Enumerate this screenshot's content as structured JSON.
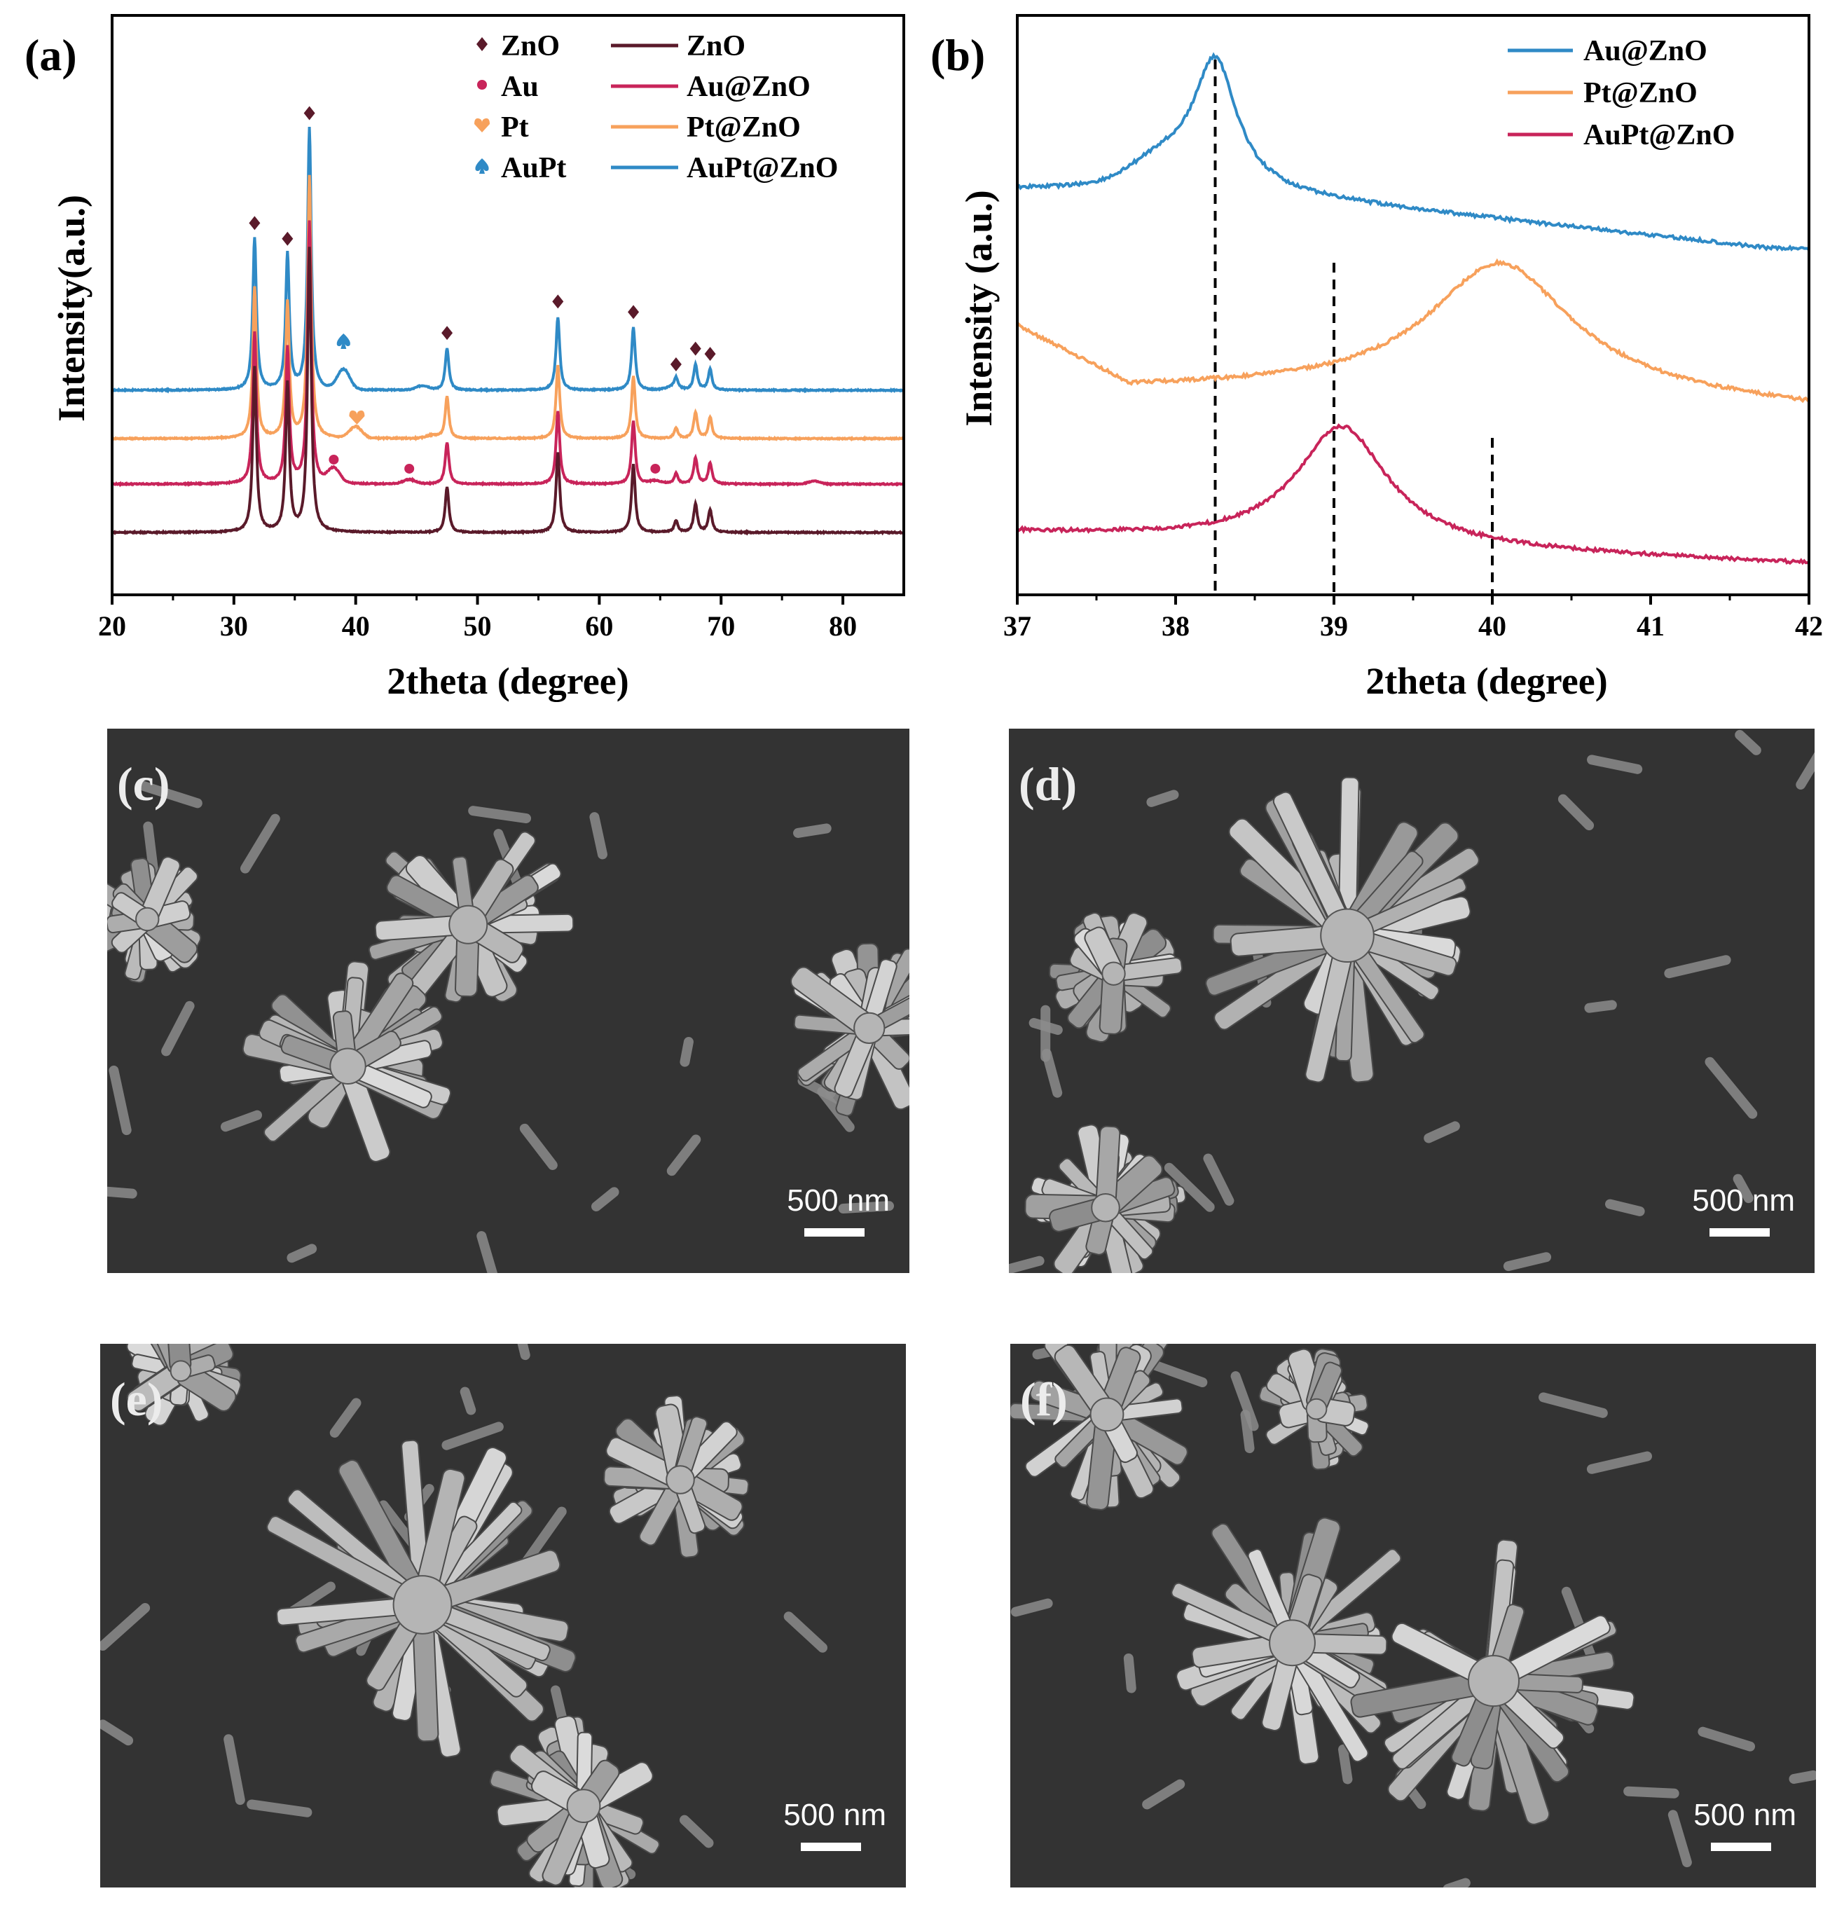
{
  "panel_a": {
    "label": "(a)",
    "xlabel": "2theta (degree)",
    "ylabel": "Intensity(a.u.)",
    "legend_markers": [
      {
        "symbol": "diamond",
        "label": "ZnO",
        "color": "#5a1a2a"
      },
      {
        "symbol": "dot",
        "label": "Au",
        "color": "#c8245a"
      },
      {
        "symbol": "heart",
        "label": "Pt",
        "color": "#f7a15c"
      },
      {
        "symbol": "spade",
        "label": "AuPt",
        "color": "#2f8ac6"
      }
    ],
    "legend_lines": [
      {
        "label": "ZnO",
        "color": "#5a1a2a"
      },
      {
        "label": "Au@ZnO",
        "color": "#c8245a"
      },
      {
        "label": "Pt@ZnO",
        "color": "#f7a15c"
      },
      {
        "label": "AuPt@ZnO",
        "color": "#2f8ac6"
      }
    ]
  },
  "panel_b": {
    "label": "(b)",
    "xlabel": "2theta (degree)",
    "ylabel": "Intensity (a.u.)",
    "legend_lines": [
      {
        "label": "Au@ZnO",
        "color": "#2f8ac6"
      },
      {
        "label": "Pt@ZnO",
        "color": "#f7a15c"
      },
      {
        "label": "AuPt@ZnO",
        "color": "#c8245a"
      }
    ]
  },
  "chart_data": [
    {
      "type": "line",
      "xlim": [
        20,
        85
      ],
      "xticks": [
        20,
        30,
        40,
        50,
        60,
        70,
        80
      ],
      "y_ticks_shown": false,
      "zno_peaks": [
        31.7,
        34.4,
        36.2,
        47.5,
        56.6,
        62.8,
        66.3,
        67.9,
        69.1
      ],
      "peak_heights": [
        0.58,
        0.52,
        1.0,
        0.16,
        0.28,
        0.24,
        0.04,
        0.1,
        0.08
      ],
      "series": [
        {
          "name": "ZnO",
          "offset": 0.0,
          "extra_peaks": []
        },
        {
          "name": "Au@ZnO",
          "offset": 0.17,
          "extra_peaks": [
            {
              "x": 38.2,
              "h": 0.05
            },
            {
              "x": 44.4,
              "h": 0.015
            },
            {
              "x": 64.6,
              "h": 0.01
            },
            {
              "x": 77.6,
              "h": 0.01
            }
          ]
        },
        {
          "name": "Pt@ZnO",
          "offset": 0.33,
          "extra_peaks": [
            {
              "x": 40.0,
              "h": 0.04
            },
            {
              "x": 46.3,
              "h": 0.01
            }
          ]
        },
        {
          "name": "AuPt@ZnO",
          "offset": 0.5,
          "extra_peaks": [
            {
              "x": 39.0,
              "h": 0.07
            },
            {
              "x": 45.5,
              "h": 0.015
            },
            {
              "x": 66.0,
              "h": 0.01
            }
          ]
        }
      ],
      "markers": [
        {
          "type": "ZnO",
          "x": 31.7
        },
        {
          "type": "ZnO",
          "x": 34.4
        },
        {
          "type": "ZnO",
          "x": 36.2
        },
        {
          "type": "ZnO",
          "x": 47.5
        },
        {
          "type": "ZnO",
          "x": 56.6
        },
        {
          "type": "ZnO",
          "x": 62.8
        },
        {
          "type": "ZnO",
          "x": 66.3
        },
        {
          "type": "ZnO",
          "x": 67.9
        },
        {
          "type": "ZnO",
          "x": 69.1
        },
        {
          "type": "Au",
          "x": 38.2
        },
        {
          "type": "Au",
          "x": 44.4
        },
        {
          "type": "Au",
          "x": 64.6
        },
        {
          "type": "Pt",
          "x": 40.1
        },
        {
          "type": "AuPt",
          "x": 39.0
        }
      ]
    },
    {
      "type": "line",
      "xlim": [
        37,
        42
      ],
      "xticks": [
        37,
        38,
        39,
        40,
        41,
        42
      ],
      "y_ticks_shown": false,
      "series": [
        {
          "name": "Au@ZnO",
          "peak_x": 38.25
        },
        {
          "name": "Pt@ZnO",
          "peak_x": 40.05
        },
        {
          "name": "AuPt@ZnO",
          "peak_x": 39.05
        }
      ],
      "reference_lines_x": [
        38.25,
        39.0,
        40.0
      ]
    }
  ],
  "sem_panels": [
    {
      "label": "(c)",
      "scale": "500 nm"
    },
    {
      "label": "(d)",
      "scale": "500 nm"
    },
    {
      "label": "(e)",
      "scale": "500 nm"
    },
    {
      "label": "(f)",
      "scale": "500 nm"
    }
  ]
}
